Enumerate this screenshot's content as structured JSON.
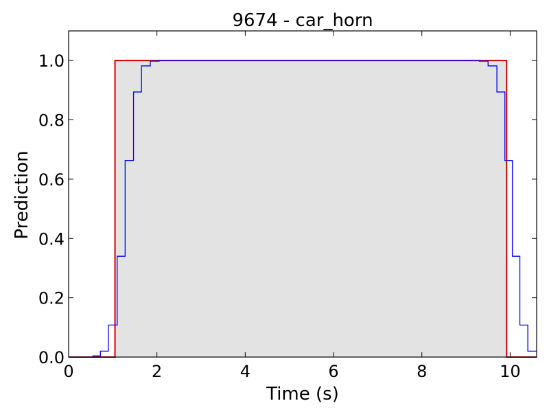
{
  "chart_data": {
    "type": "line",
    "title": "9674 - car_horn",
    "xlabel": "Time (s)",
    "ylabel": "Prediction",
    "xlim": [
      0,
      10.6
    ],
    "ylim": [
      0,
      1.1
    ],
    "xticks": [
      0,
      2,
      4,
      6,
      8,
      10
    ],
    "xtick_labels": [
      "0",
      "2",
      "4",
      "6",
      "8",
      "10"
    ],
    "yticks": [
      0.0,
      0.2,
      0.4,
      0.6,
      0.8,
      1.0
    ],
    "ytick_labels": [
      "0.0",
      "0.2",
      "0.4",
      "0.6",
      "0.8",
      "1.0"
    ],
    "grid": false,
    "annotated_region": {
      "start": 1.05,
      "end": 9.92,
      "color": "#e3e3e3"
    },
    "series": [
      {
        "style": "step",
        "color": "#cc0000",
        "x": [
          0,
          1.05,
          1.05,
          9.92,
          9.92,
          10.6
        ],
        "y": [
          0,
          0,
          1.0,
          1.0,
          0,
          0
        ]
      },
      {
        "style": "step",
        "color": "#0000ff",
        "x": [
          0,
          0.55,
          0.55,
          0.72,
          0.72,
          0.9,
          0.9,
          1.1,
          1.1,
          1.28,
          1.28,
          1.47,
          1.47,
          1.65,
          1.65,
          1.85,
          1.85,
          2.05,
          2.05,
          9.3,
          9.3,
          9.5,
          9.5,
          9.7,
          9.7,
          9.88,
          9.88,
          10.05,
          10.05,
          10.22,
          10.22,
          10.4,
          10.4,
          10.6
        ],
        "y": [
          0,
          0,
          0.004,
          0.004,
          0.02,
          0.02,
          0.108,
          0.108,
          0.34,
          0.34,
          0.663,
          0.663,
          0.894,
          0.894,
          0.982,
          0.982,
          0.998,
          0.998,
          1.0,
          1.0,
          0.998,
          0.998,
          0.982,
          0.982,
          0.894,
          0.894,
          0.663,
          0.663,
          0.34,
          0.34,
          0.108,
          0.108,
          0.02,
          0.02
        ]
      }
    ]
  }
}
